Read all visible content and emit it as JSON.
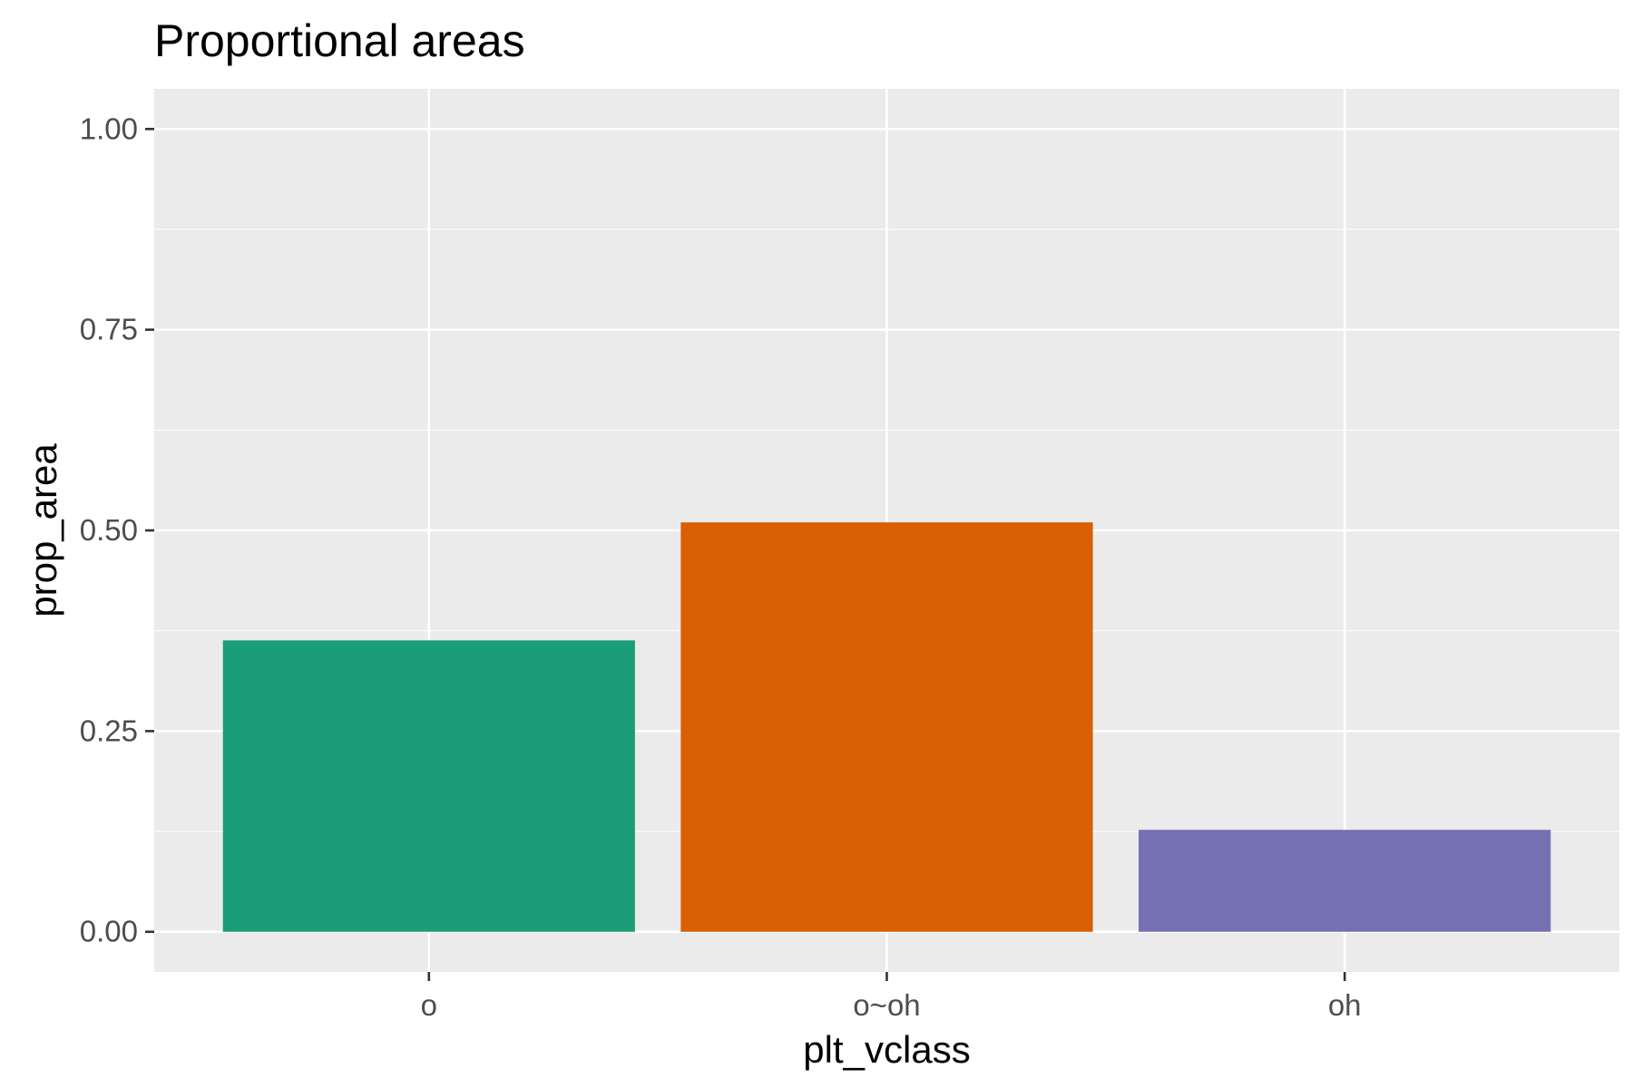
{
  "chart_data": {
    "type": "bar",
    "title": "Proportional areas",
    "xlabel": "plt_vclass",
    "ylabel": "prop_area",
    "categories": [
      "o",
      "o~oh",
      "oh"
    ],
    "values": [
      0.363,
      0.51,
      0.127
    ],
    "colors": [
      "#1b9e77",
      "#d95f02",
      "#7570b3"
    ],
    "ylim": [
      -0.05,
      1.05
    ],
    "yticks": [
      0,
      0.25,
      0.5,
      0.75,
      1
    ],
    "ytick_labels": [
      "0.00",
      "0.25",
      "0.50",
      "0.75",
      "1.00"
    ],
    "panel_background": "#ebebeb",
    "grid_color": "#ffffff",
    "grid": true,
    "legend": "none"
  }
}
